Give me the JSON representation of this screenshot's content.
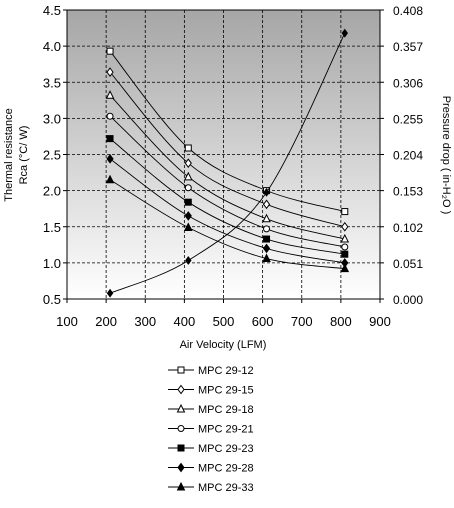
{
  "chart_data": {
    "type": "line",
    "xlabel": "Air Velocity (LFM)",
    "ylabel_line1": "Thermal resistance",
    "ylabel_line2": "Rca (°C/ W)",
    "y2label": "Pressure drop ( in-H₂O )",
    "xlim": [
      100,
      900
    ],
    "ylim": [
      0.5,
      4.5
    ],
    "y2lim": [
      0,
      0.408
    ],
    "x_ticks": [
      "100",
      "200",
      "300",
      "400",
      "500",
      "600",
      "700",
      "800",
      "900"
    ],
    "y_ticks": [
      "0.5",
      "1.0",
      "1.5",
      "2.0",
      "2.5",
      "3.0",
      "3.5",
      "4.0",
      "4.5"
    ],
    "y2_ticks": [
      "0.000",
      "0.051",
      "0.102",
      "0.153",
      "0.204",
      "0.255",
      "0.306",
      "0.357",
      "0.408"
    ],
    "grid": true,
    "legend_position": "bottom",
    "series": [
      {
        "name": "MPC 29-12",
        "marker": "square-open",
        "x": [
          210,
          410,
          610,
          810
        ],
        "y": [
          3.93,
          2.59,
          2.0,
          1.71
        ]
      },
      {
        "name": "MPC 29-15",
        "marker": "diamond-open",
        "x": [
          210,
          410,
          610,
          810
        ],
        "y": [
          3.64,
          2.38,
          1.81,
          1.5
        ]
      },
      {
        "name": "MPC 29-18",
        "marker": "triangle-open",
        "x": [
          210,
          410,
          610,
          810
        ],
        "y": [
          3.32,
          2.19,
          1.61,
          1.33
        ]
      },
      {
        "name": "MPC 29-21",
        "marker": "circle-open",
        "x": [
          210,
          410,
          610,
          810
        ],
        "y": [
          3.03,
          2.04,
          1.47,
          1.22
        ]
      },
      {
        "name": "MPC 29-23",
        "marker": "square-filled",
        "x": [
          210,
          410,
          610,
          810
        ],
        "y": [
          2.72,
          1.84,
          1.33,
          1.12
        ]
      },
      {
        "name": "MPC 29-28",
        "marker": "diamond-filled",
        "x": [
          210,
          410,
          610,
          810
        ],
        "y": [
          2.44,
          1.65,
          1.2,
          1.0
        ]
      },
      {
        "name": "MPC 29-33",
        "marker": "triangle-filled",
        "x": [
          210,
          410,
          610,
          810
        ],
        "y": [
          2.15,
          1.49,
          1.06,
          0.92
        ]
      }
    ],
    "pressure_series": {
      "axis": "y2",
      "marker": "diamond-filled",
      "x": [
        210,
        410,
        610,
        810
      ],
      "y": [
        0.0082,
        0.0544,
        0.1506,
        0.3753
      ]
    }
  }
}
